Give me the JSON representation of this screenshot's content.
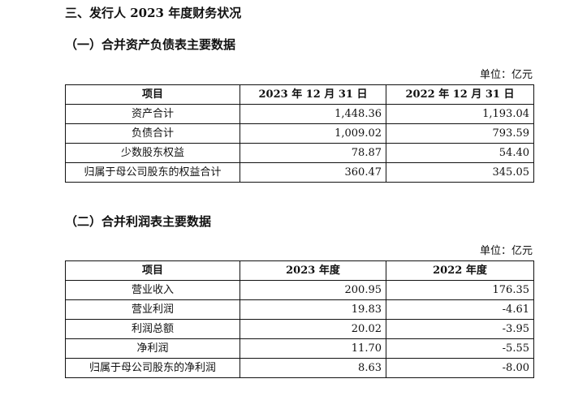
{
  "section_title": "三、发行人 2023 年度财务状况",
  "balance_sheet": {
    "title": "（一）合并资产负债表主要数据",
    "unit": "单位：亿元",
    "headers": [
      "项目",
      "2023 年 12 月 31 日",
      "2022 年 12 月 31 日"
    ],
    "rows": [
      {
        "item": "资产合计",
        "v2023": "1,448.36",
        "v2022": "1,193.04"
      },
      {
        "item": "负债合计",
        "v2023": "1,009.02",
        "v2022": "793.59"
      },
      {
        "item": "少数股东权益",
        "v2023": "78.87",
        "v2022": "54.40"
      },
      {
        "item": "归属于母公司股东的权益合计",
        "v2023": "360.47",
        "v2022": "345.05"
      }
    ]
  },
  "income_statement": {
    "title": "（二）合并利润表主要数据",
    "unit": "单位：亿元",
    "headers": [
      "项目",
      "2023 年度",
      "2022 年度"
    ],
    "rows": [
      {
        "item": "营业收入",
        "v2023": "200.95",
        "v2022": "176.35"
      },
      {
        "item": "营业利润",
        "v2023": "19.83",
        "v2022": "-4.61"
      },
      {
        "item": "利润总额",
        "v2023": "20.02",
        "v2022": "-3.95"
      },
      {
        "item": "净利润",
        "v2023": "11.70",
        "v2022": "-5.55"
      },
      {
        "item": "归属于母公司股东的净利润",
        "v2023": "8.63",
        "v2022": "-8.00"
      }
    ]
  }
}
